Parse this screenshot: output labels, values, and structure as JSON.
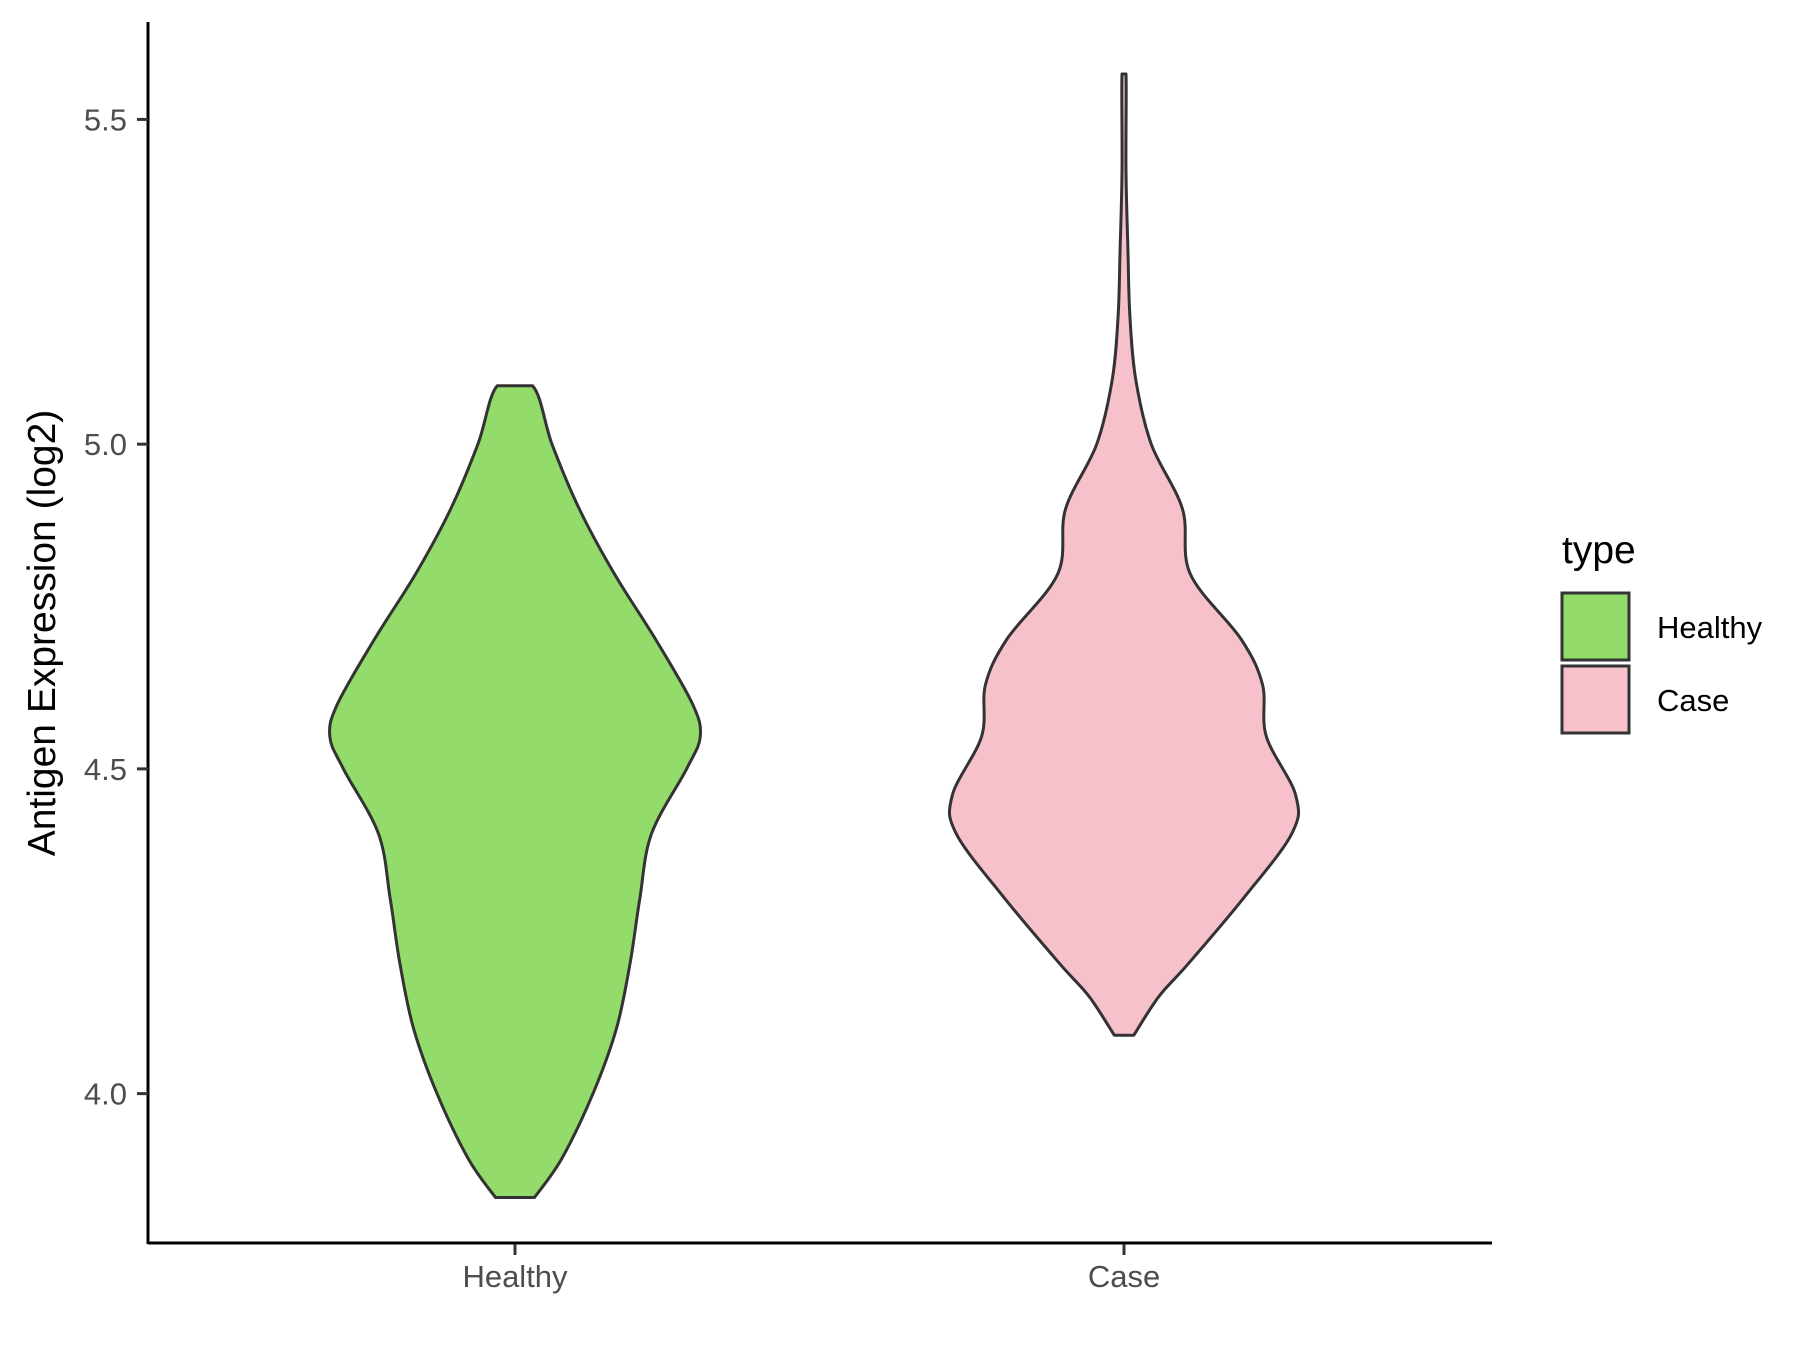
{
  "chart_data": {
    "type": "violin",
    "title": "",
    "xlabel": "",
    "ylabel": "Antigen Expression (log2)",
    "ylim": [
      3.77,
      5.65
    ],
    "yticks": [
      "4.0",
      "4.5",
      "5.0",
      "5.5"
    ],
    "categories": [
      "Healthy",
      "Case"
    ],
    "grid": false,
    "legend": {
      "title": "type",
      "position": "right",
      "entries": [
        {
          "label": "Healthy",
          "color": "#93DB6A"
        },
        {
          "label": "Case",
          "color": "#F7C1CC"
        }
      ]
    },
    "series": [
      {
        "category": "Healthy",
        "color": "#93DB6A",
        "min": 3.84,
        "max": 5.09,
        "density_profile": [
          [
            3.84,
            0.1
          ],
          [
            3.9,
            0.24
          ],
          [
            4.0,
            0.4
          ],
          [
            4.1,
            0.52
          ],
          [
            4.2,
            0.59
          ],
          [
            4.3,
            0.64
          ],
          [
            4.4,
            0.7
          ],
          [
            4.5,
            0.88
          ],
          [
            4.55,
            0.95
          ],
          [
            4.6,
            0.91
          ],
          [
            4.7,
            0.72
          ],
          [
            4.8,
            0.51
          ],
          [
            4.9,
            0.33
          ],
          [
            5.0,
            0.19
          ],
          [
            5.09,
            0.09
          ]
        ]
      },
      {
        "category": "Case",
        "color": "#F7C1CC",
        "min": 4.09,
        "max": 5.57,
        "density_profile": [
          [
            4.09,
            0.05
          ],
          [
            4.15,
            0.18
          ],
          [
            4.2,
            0.33
          ],
          [
            4.3,
            0.61
          ],
          [
            4.4,
            0.86
          ],
          [
            4.46,
            0.88
          ],
          [
            4.55,
            0.73
          ],
          [
            4.63,
            0.71
          ],
          [
            4.7,
            0.6
          ],
          [
            4.8,
            0.34
          ],
          [
            4.9,
            0.3
          ],
          [
            5.0,
            0.14
          ],
          [
            5.1,
            0.06
          ],
          [
            5.2,
            0.03
          ],
          [
            5.3,
            0.02
          ],
          [
            5.42,
            0.01
          ],
          [
            5.57,
            0.01
          ]
        ]
      }
    ]
  }
}
